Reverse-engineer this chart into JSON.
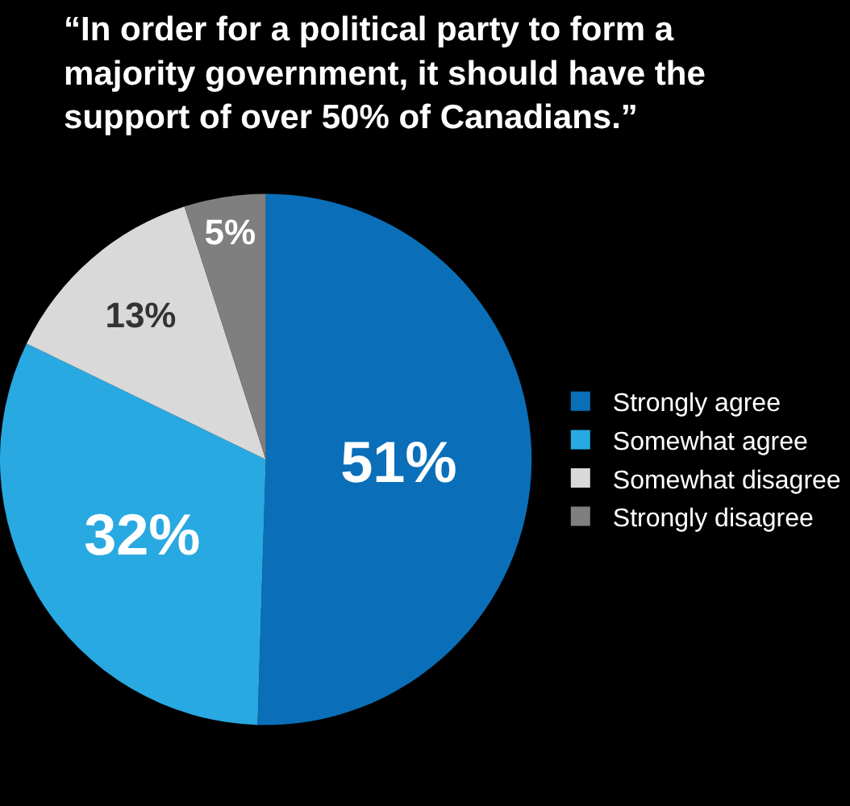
{
  "chart_data": {
    "type": "pie",
    "title": "“In order for a political party to form a majority government, it should have the support of over 50% of Canadians.”",
    "categories": [
      "Strongly agree",
      "Somewhat agree",
      "Somewhat disagree",
      "Strongly disagree"
    ],
    "values": [
      51,
      32,
      13,
      5
    ],
    "value_labels": [
      "51%",
      "32%",
      "13%",
      "5%"
    ],
    "colors": [
      "#0a6fb8",
      "#29a9e1",
      "#d9d9d9",
      "#7f7f7f"
    ],
    "legend": "right"
  }
}
